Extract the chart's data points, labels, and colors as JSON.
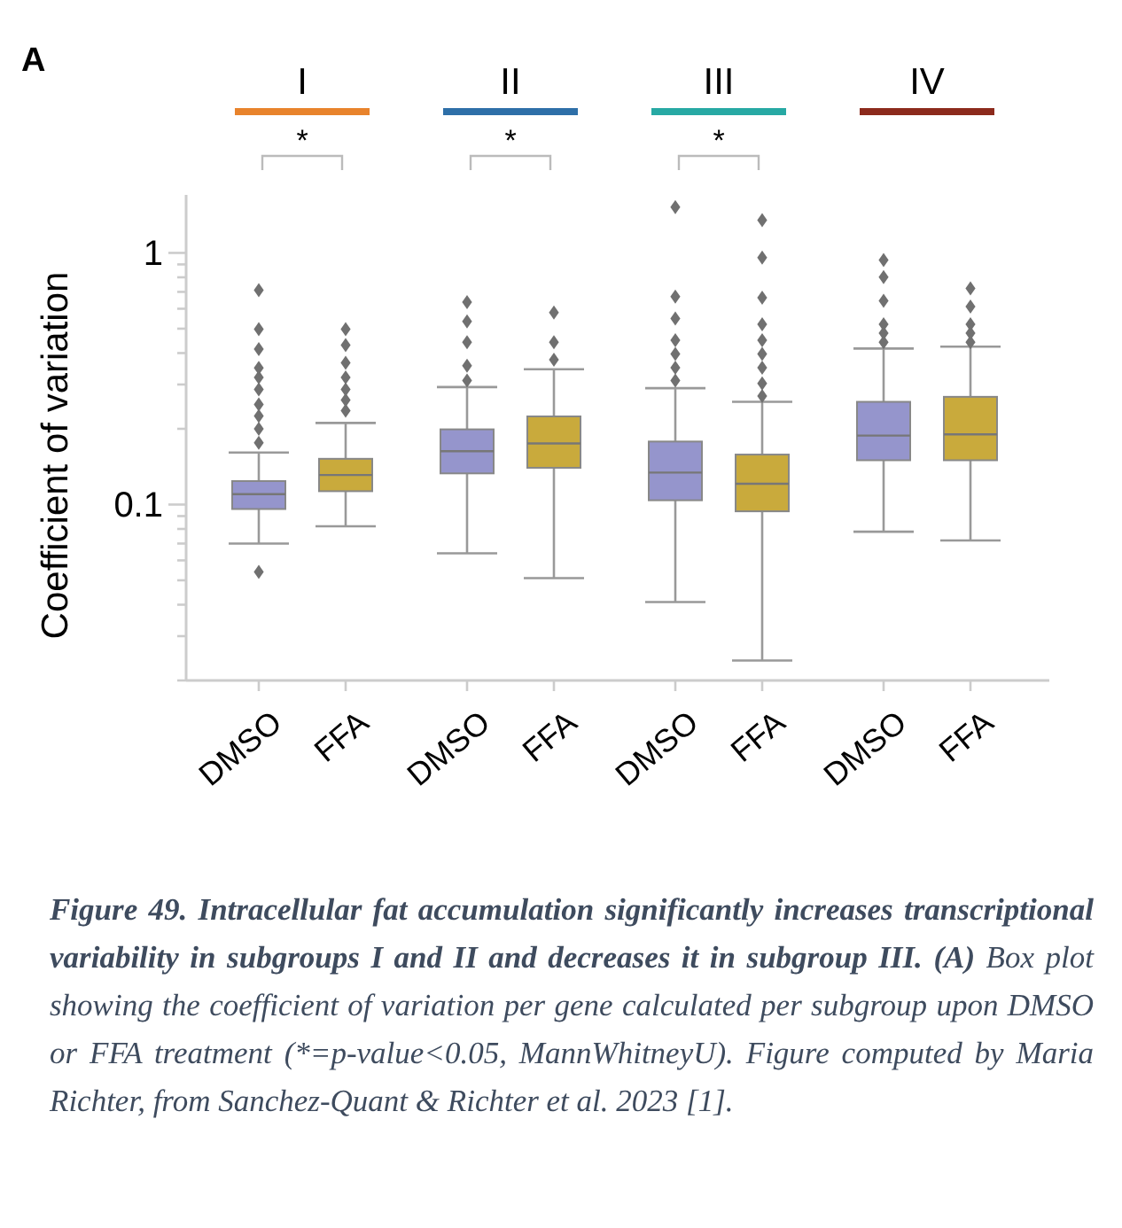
{
  "chart_data": {
    "type": "box",
    "ylabel": "Coefficient of variation",
    "log": true,
    "grid": false,
    "marker": "diamond",
    "categories": [
      "DMSO",
      "FFA",
      "DMSO",
      "FFA",
      "DMSO",
      "FFA",
      "DMSO",
      "FFA"
    ],
    "colors": [
      "#9595cc",
      "#c9aa3c",
      "#9595cc",
      "#c9aa3c",
      "#9595cc",
      "#c9aa3c",
      "#9595cc",
      "#c9aa3c"
    ],
    "ylim": [
      0.02,
      1.7
    ],
    "yticks": [
      {
        "value": 0.02,
        "label": null
      },
      {
        "value": 0.03,
        "label": null
      },
      {
        "value": 0.04,
        "label": null
      },
      {
        "value": 0.05,
        "label": null
      },
      {
        "value": 0.06,
        "label": null
      },
      {
        "value": 0.07,
        "label": null
      },
      {
        "value": 0.08,
        "label": null
      },
      {
        "value": 0.09,
        "label": null
      },
      0.1,
      {
        "value": 0.2,
        "label": null
      },
      {
        "value": 0.3,
        "label": null
      },
      {
        "value": 0.4,
        "label": null
      },
      {
        "value": 0.5,
        "label": null
      },
      {
        "value": 0.6,
        "label": null
      },
      {
        "value": 0.7,
        "label": null
      },
      {
        "value": 0.8,
        "label": null
      },
      {
        "value": 0.9,
        "label": null
      },
      1
    ],
    "boxes": [
      {
        "low": 0.07,
        "q1": 0.096,
        "median": 0.11,
        "q3": 0.124,
        "high": 0.161,
        "outliers": [
          0.054,
          0.176,
          0.2,
          0.225,
          0.25,
          0.287,
          0.32,
          0.349,
          0.415,
          0.498,
          0.711
        ]
      },
      {
        "low": 0.082,
        "q1": 0.113,
        "median": 0.131,
        "q3": 0.152,
        "high": 0.211,
        "outliers": [
          0.236,
          0.26,
          0.287,
          0.32,
          0.366,
          0.43,
          0.498
        ]
      },
      {
        "low": 0.064,
        "q1": 0.133,
        "median": 0.163,
        "q3": 0.199,
        "high": 0.293,
        "outliers": [
          0.311,
          0.356,
          0.442,
          0.534,
          0.638
        ]
      },
      {
        "low": 0.051,
        "q1": 0.14,
        "median": 0.175,
        "q3": 0.224,
        "high": 0.345,
        "outliers": [
          0.376,
          0.442,
          0.579
        ]
      },
      {
        "low": 0.041,
        "q1": 0.104,
        "median": 0.134,
        "q3": 0.178,
        "high": 0.29,
        "outliers": [
          0.311,
          0.35,
          0.397,
          0.45,
          0.549,
          0.67,
          1.52
        ]
      },
      {
        "low": 0.024,
        "q1": 0.094,
        "median": 0.121,
        "q3": 0.158,
        "high": 0.256,
        "outliers": [
          0.27,
          0.303,
          0.35,
          0.397,
          0.45,
          0.52,
          0.664,
          0.957,
          1.35
        ]
      },
      {
        "low": 0.078,
        "q1": 0.15,
        "median": 0.188,
        "q3": 0.256,
        "high": 0.417,
        "outliers": [
          0.442,
          0.48,
          0.52,
          0.645,
          0.801,
          0.937
        ]
      },
      {
        "low": 0.072,
        "q1": 0.15,
        "median": 0.19,
        "q3": 0.268,
        "high": 0.424,
        "outliers": [
          0.442,
          0.48,
          0.52,
          0.612,
          0.723
        ]
      }
    ],
    "annotations": [
      "A",
      "I",
      "II",
      "III",
      "IV",
      "*",
      "*",
      "*",
      "Figure 49. Intracellular fat accumulation significantly increases transcriptional variability in subgroups I and II and decreases it in subgroup III. (A)",
      "Box plot showing the coefficient of variation per gene calculated per subgroup upon DMSO or FFA treatment (*=p-value<0.05, MannWhitneyU). Figure computed by Maria Richter, from Sanchez-Quant & Richter et al. 2023 [1]."
    ]
  }
}
